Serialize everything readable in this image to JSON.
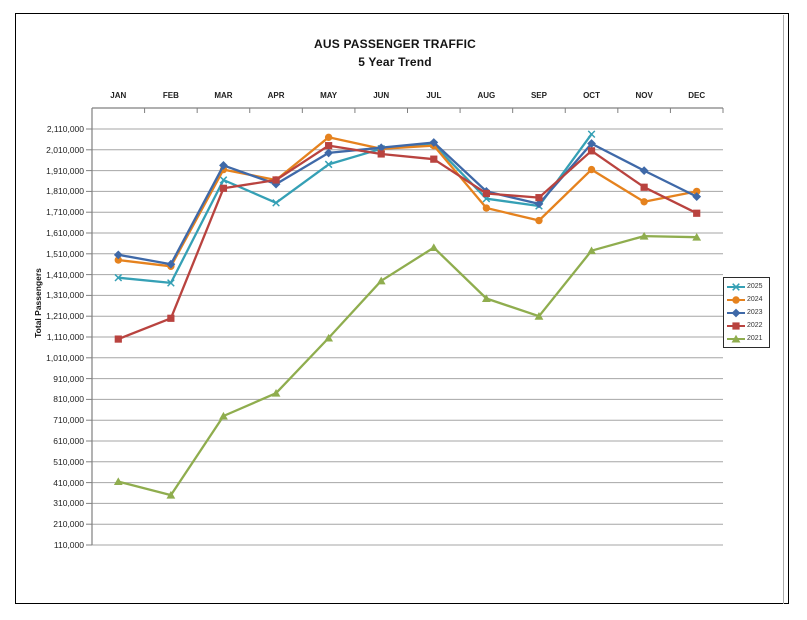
{
  "title": {
    "line1": "AUS PASSENGER TRAFFIC",
    "line2": "5 Year Trend"
  },
  "chart_data": {
    "type": "line",
    "title": "AUS PASSENGER TRAFFIC",
    "subtitle": "5 Year Trend",
    "xlabel": "",
    "ylabel": "Total Passengers",
    "categories": [
      "JAN",
      "FEB",
      "MAR",
      "APR",
      "MAY",
      "JUN",
      "JUL",
      "AUG",
      "SEP",
      "OCT",
      "NOV",
      "DEC"
    ],
    "ylim": [
      110000,
      2110000
    ],
    "y_tick_step": 100000,
    "grid": true,
    "x_axis_position": "top",
    "legend_position": "right",
    "colors": {
      "grid": "#a6a6a6",
      "axis": "#808080",
      "text": "#222222"
    },
    "series": [
      {
        "name": "2025",
        "color": "#35a0b5",
        "marker": "x",
        "values": [
          1395000,
          1370000,
          1865000,
          1755000,
          1940000,
          2015000,
          2035000,
          1775000,
          1740000,
          2085000,
          null,
          null
        ]
      },
      {
        "name": "2024",
        "color": "#e5821e",
        "marker": "circle",
        "values": [
          1480000,
          1450000,
          1915000,
          1865000,
          2070000,
          2015000,
          2030000,
          1730000,
          1670000,
          1915000,
          1760000,
          1810000
        ]
      },
      {
        "name": "2023",
        "color": "#3f69a8",
        "marker": "diamond",
        "values": [
          1505000,
          1460000,
          1935000,
          1845000,
          1995000,
          2020000,
          2045000,
          1810000,
          1750000,
          2040000,
          1910000,
          1785000
        ]
      },
      {
        "name": "2022",
        "color": "#b9433f",
        "marker": "square",
        "values": [
          1100000,
          1200000,
          1825000,
          1865000,
          2030000,
          1990000,
          1965000,
          1800000,
          1780000,
          2005000,
          1830000,
          1705000
        ]
      },
      {
        "name": "2021",
        "color": "#8fad4e",
        "marker": "triangle",
        "values": [
          415000,
          350000,
          730000,
          840000,
          1105000,
          1380000,
          1540000,
          1295000,
          1210000,
          1525000,
          1595000,
          1590000
        ]
      }
    ]
  }
}
